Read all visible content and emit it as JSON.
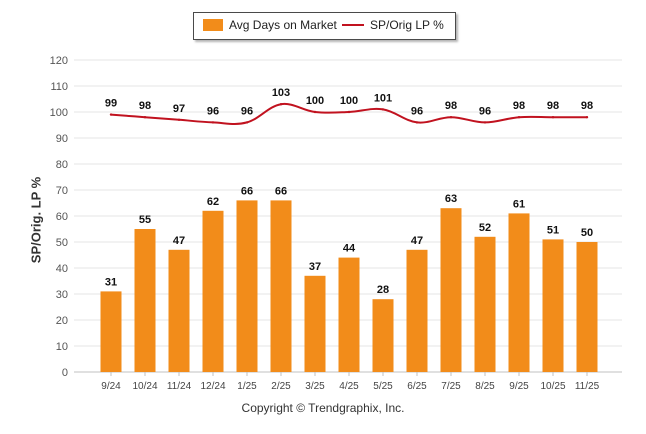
{
  "chart_data": {
    "type": "bar",
    "title": "",
    "xlabel": "",
    "ylabel": "SP/Orig. LP %",
    "ylim": [
      0,
      120
    ],
    "yticks": [
      0,
      10,
      20,
      30,
      40,
      50,
      60,
      70,
      80,
      90,
      100,
      110,
      120
    ],
    "categories": [
      "9/24",
      "10/24",
      "11/24",
      "12/24",
      "1/25",
      "2/25",
      "3/25",
      "4/25",
      "5/25",
      "6/25",
      "7/25",
      "8/25",
      "9/25",
      "10/25",
      "11/25"
    ],
    "series": [
      {
        "name": "Avg Days on Market",
        "type": "bar",
        "color": "#f28c1a",
        "values": [
          31,
          55,
          47,
          62,
          66,
          66,
          37,
          44,
          28,
          47,
          63,
          52,
          61,
          51,
          50
        ]
      },
      {
        "name": "SP/Orig LP %",
        "type": "line",
        "color": "#c1121f",
        "values": [
          99,
          98,
          97,
          96,
          96,
          103,
          100,
          100,
          101,
          96,
          98,
          96,
          98,
          98,
          98
        ]
      }
    ],
    "legend_position": "top-center",
    "grid": true
  },
  "copyright": "Copyright © Trendgraphix, Inc."
}
